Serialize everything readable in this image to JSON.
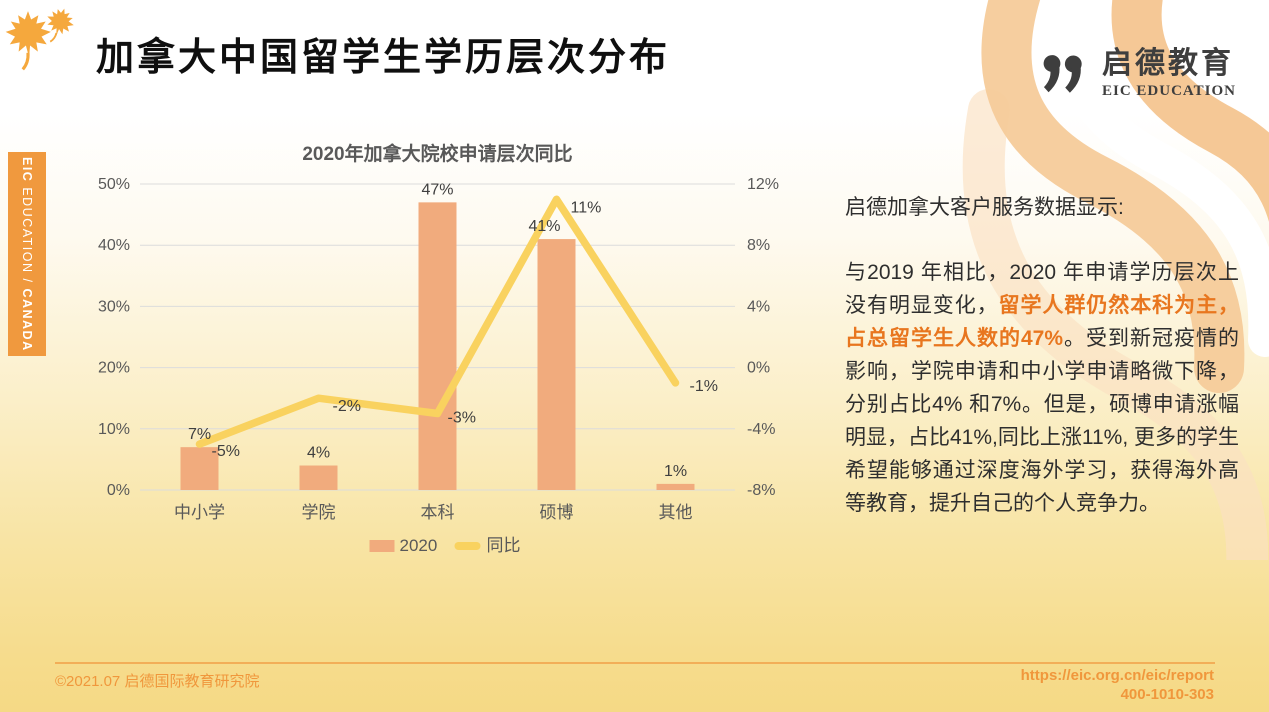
{
  "page_title": "加拿大中国留学生学历层次分布",
  "logo": {
    "cn": "启德教育",
    "en": "EIC EDUCATION"
  },
  "side_tab": {
    "bold1": "EIC",
    "mid": " EDUCATION / ",
    "bold2": "CANADA"
  },
  "colors": {
    "bar": "#f1ab7d",
    "line": "#f9d25f",
    "tab_orange": "#f0993e",
    "highlight_orange": "#e8761f",
    "footer_orange": "#f0973c",
    "axis_gray": "#595959",
    "leaf_orange": "#f5a83d"
  },
  "chart_data": {
    "type": "bar",
    "subtype": "combo bar+line, dual axis",
    "title": "2020年加拿大院校申请层次同比",
    "categories": [
      "中小学",
      "学院",
      "本科",
      "硕博",
      "其他"
    ],
    "series": [
      {
        "name": "2020",
        "type": "bar",
        "axis": "left",
        "values": [
          7,
          4,
          47,
          41,
          1
        ],
        "labels": [
          "7%",
          "4%",
          "47%",
          "41%",
          "1%"
        ],
        "color": "#f1ab7d"
      },
      {
        "name": "同比",
        "type": "line",
        "axis": "right",
        "values": [
          -5,
          -2,
          -3,
          11,
          -1
        ],
        "labels": [
          "-5%",
          "-2%",
          "-3%",
          "11%",
          "-1%"
        ],
        "color": "#f9d25f"
      }
    ],
    "left_axis": {
      "min": 0,
      "max": 50,
      "ticks": [
        "0%",
        "10%",
        "20%",
        "30%",
        "40%",
        "50%"
      ]
    },
    "right_axis": {
      "min": -8,
      "max": 12,
      "ticks": [
        "-8%",
        "-4%",
        "0%",
        "4%",
        "8%",
        "12%"
      ]
    },
    "grid": true,
    "legend_position": "bottom"
  },
  "insight": {
    "heading": "启德加拿大客户服务数据显示:",
    "para_pre": "与2019 年相比，2020 年申请学历层次上没有明显变化，",
    "para_highlight": "留学人群仍然本科为主，占总留学生人数的47%",
    "para_post": "。受到新冠疫情的影响，学院申请和中小学申请略微下降，分别占比4% 和7%。但是，硕博申请涨幅明显，占比41%,同比上涨11%, 更多的学生希望能够通过深度海外学习，获得海外高等教育，提升自己的个人竞争力。"
  },
  "footer": {
    "left": "©2021.07 启德国际教育研究院",
    "url": "https://eic.org.cn/eic/report",
    "phone": "400-1010-303"
  }
}
